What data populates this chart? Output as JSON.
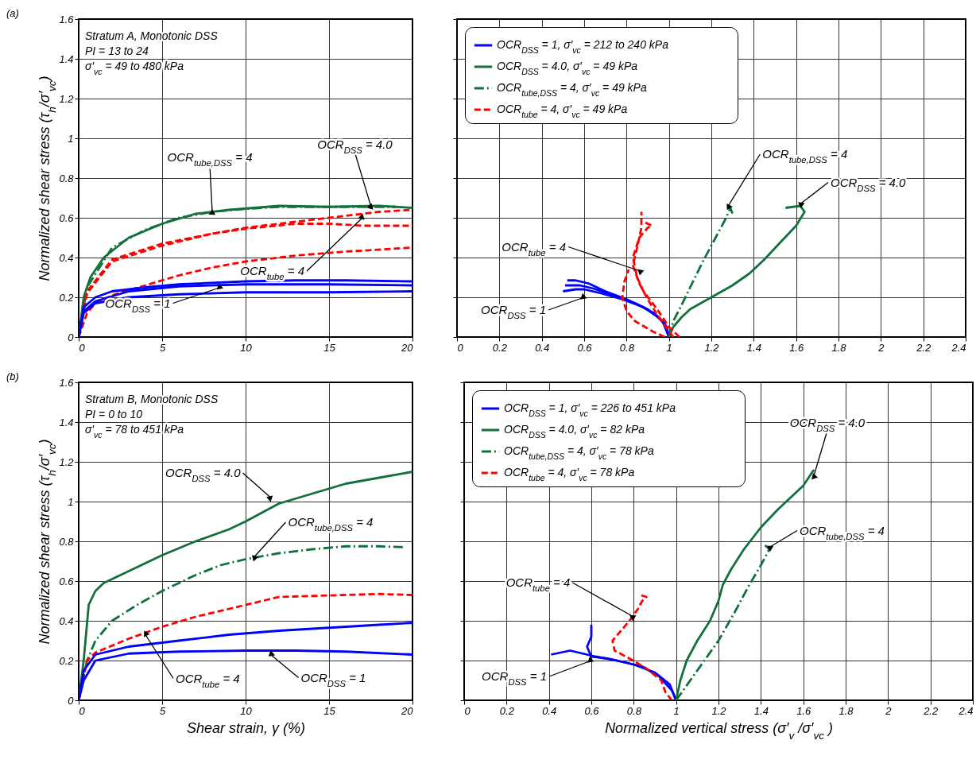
{
  "chart_data": [
    {
      "type": "line",
      "title": "(a)",
      "ylabel": "Normalized shear stress (τ$_{h}$/σ′$_{vc}$)",
      "xlim": [
        0,
        20
      ],
      "ylim": [
        0,
        1.6
      ],
      "xticks": [
        0,
        5,
        10,
        15,
        20
      ],
      "yticks": [
        0,
        0.2,
        0.4,
        0.6,
        0.8,
        1,
        1.2,
        1.4,
        1.6
      ],
      "grid": true,
      "legend": false,
      "series": [
        {
          "color": "#12703c",
          "line_style": "solid",
          "x": [
            0,
            0.3,
            0.7,
            1.5,
            3,
            5,
            7,
            9,
            12,
            15,
            18,
            20
          ],
          "values": [
            0,
            0.2,
            0.3,
            0.4,
            0.5,
            0.57,
            0.62,
            0.64,
            0.66,
            0.655,
            0.66,
            0.65
          ]
        },
        {
          "color": "#12703c",
          "line_style": "dashdot",
          "x": [
            0,
            0.5,
            2,
            4,
            6,
            8,
            10,
            12,
            15,
            19
          ],
          "values": [
            0,
            0.25,
            0.45,
            0.54,
            0.6,
            0.63,
            0.645,
            0.655,
            0.655,
            0.655
          ]
        },
        {
          "color": "#ff0000",
          "line_style": "dashed",
          "x": [
            0,
            0.5,
            2,
            5,
            8,
            10,
            12,
            15,
            18,
            20
          ],
          "values": [
            0,
            0.22,
            0.38,
            0.46,
            0.52,
            0.55,
            0.57,
            0.6,
            0.63,
            0.64
          ]
        },
        {
          "color": "#ff0000",
          "line_style": "dashed",
          "x": [
            0,
            0.5,
            2,
            5,
            8,
            10,
            13,
            15,
            17,
            20
          ],
          "values": [
            0,
            0.23,
            0.39,
            0.47,
            0.52,
            0.545,
            0.57,
            0.57,
            0.56,
            0.56
          ]
        },
        {
          "color": "#ff0000",
          "line_style": "dashed",
          "x": [
            0,
            0.5,
            1,
            2,
            4,
            6,
            8,
            10,
            13,
            16,
            20
          ],
          "values": [
            0,
            0.12,
            0.17,
            0.21,
            0.26,
            0.31,
            0.35,
            0.38,
            0.41,
            0.43,
            0.45
          ]
        },
        {
          "color": "#0000ff",
          "line_style": "solid",
          "x": [
            0,
            0.3,
            1,
            2,
            4,
            6,
            10,
            13,
            16,
            20
          ],
          "values": [
            0,
            0.15,
            0.2,
            0.23,
            0.25,
            0.265,
            0.28,
            0.285,
            0.285,
            0.28
          ]
        },
        {
          "color": "#0000ff",
          "line_style": "solid",
          "x": [
            0,
            0.3,
            1,
            3,
            6,
            10,
            15,
            20
          ],
          "values": [
            0,
            0.13,
            0.18,
            0.23,
            0.255,
            0.265,
            0.265,
            0.26
          ]
        },
        {
          "color": "#0000ff",
          "line_style": "solid",
          "x": [
            0,
            0.3,
            1,
            3,
            6,
            10,
            15,
            20
          ],
          "values": [
            0,
            0.12,
            0.17,
            0.2,
            0.215,
            0.225,
            0.225,
            0.23
          ]
        }
      ],
      "annotations": [
        "Stratum A, Monotonic DSS",
        "PI = 13 to 24",
        "σ′$_{vc}$ = 49 to 480 kPa",
        {
          "text": "OCR$_{tube,DSS}$ = 4",
          "x": 8,
          "y": 0.63
        },
        {
          "text": "OCR$_{DSS}$ = 4.0",
          "x": 17.5,
          "y": 0.66
        },
        {
          "text": "OCR$_{tube}$ = 4",
          "x": 17,
          "y": 0.6
        },
        {
          "text": "OCR$_{DSS}$ = 1",
          "x": 8.5,
          "y": 0.25
        }
      ]
    },
    {
      "type": "line",
      "xlim": [
        0,
        2.4
      ],
      "ylim": [
        0,
        1.6
      ],
      "xticks": [
        0,
        0.2,
        0.4,
        0.6,
        0.8,
        1,
        1.2,
        1.4,
        1.6,
        1.8,
        2,
        2.2,
        2.4
      ],
      "yticks": [
        0,
        0.2,
        0.4,
        0.6,
        0.8,
        1,
        1.2,
        1.4,
        1.6
      ],
      "grid": true,
      "legend": "top left",
      "tick_labels": "x",
      "series": [
        {
          "name": "OCR$_{DSS}$ = 1, σ′$_{vc}$ = 212 to 240 kPa",
          "color": "#0000ff",
          "line_style": "solid",
          "x": [
            1,
            0.99,
            0.95,
            0.88,
            0.78,
            0.68,
            0.6,
            0.56,
            0.5
          ],
          "values": [
            0,
            0.05,
            0.1,
            0.15,
            0.19,
            0.22,
            0.24,
            0.24,
            0.23
          ]
        },
        {
          "color": "#0000ff",
          "line_style": "solid",
          "x": [
            1,
            0.98,
            0.93,
            0.84,
            0.74,
            0.64,
            0.58,
            0.51
          ],
          "values": [
            0,
            0.07,
            0.12,
            0.17,
            0.21,
            0.245,
            0.26,
            0.26
          ]
        },
        {
          "color": "#0000ff",
          "line_style": "solid",
          "x": [
            1,
            0.97,
            0.9,
            0.8,
            0.7,
            0.62,
            0.56,
            0.52
          ],
          "values": [
            0,
            0.08,
            0.14,
            0.19,
            0.23,
            0.27,
            0.285,
            0.285
          ]
        },
        {
          "name": "OCR$_{DSS}$ = 4.0, σ′$_{vc}$ = 49 kPa",
          "color": "#12703c",
          "line_style": "solid",
          "x": [
            1,
            1.02,
            1.06,
            1.1,
            1.2,
            1.3,
            1.38,
            1.45,
            1.52,
            1.6,
            1.64,
            1.62,
            1.55
          ],
          "values": [
            0,
            0.05,
            0.1,
            0.14,
            0.2,
            0.26,
            0.32,
            0.39,
            0.47,
            0.56,
            0.63,
            0.66,
            0.65
          ]
        },
        {
          "name": "OCR$_{tube,DSS}$ = 4, σ′$_{vc}$ = 49 kPa",
          "color": "#12703c",
          "line_style": "dashdot",
          "x": [
            1,
            1.02,
            1.05,
            1.1,
            1.16,
            1.22,
            1.27,
            1.29,
            1.3
          ],
          "values": [
            0,
            0.08,
            0.14,
            0.25,
            0.38,
            0.5,
            0.6,
            0.65,
            0.62
          ]
        },
        {
          "name": "OCR$_{tube}$ = 4, σ′$_{vc}$ = 49 kPa",
          "color": "#ff0000",
          "line_style": "dashed",
          "x": [
            1.05,
            1,
            0.97,
            0.93,
            0.88,
            0.85,
            0.83,
            0.86,
            0.9,
            0.92,
            0.88
          ],
          "values": [
            0,
            0.05,
            0.1,
            0.16,
            0.23,
            0.3,
            0.4,
            0.5,
            0.55,
            0.56,
            0.58
          ]
        },
        {
          "color": "#ff0000",
          "line_style": "dashed",
          "x": [
            1.02,
            0.98,
            0.94,
            0.9,
            0.86,
            0.83,
            0.85,
            0.87,
            0.87
          ],
          "values": [
            0,
            0.06,
            0.12,
            0.19,
            0.27,
            0.36,
            0.45,
            0.55,
            0.63
          ]
        },
        {
          "color": "#ff0000",
          "line_style": "dashed",
          "x": [
            0.98,
            0.92,
            0.84,
            0.8,
            0.78,
            0.79,
            0.81
          ],
          "values": [
            0,
            0.03,
            0.08,
            0.13,
            0.2,
            0.28,
            0.34
          ]
        }
      ],
      "annotations": [
        {
          "text": "OCR$_{tube,DSS}$ = 4",
          "x": 1.28,
          "y": 0.66
        },
        {
          "text": "OCR$_{DSS}$ = 4.0",
          "x": 1.62,
          "y": 0.67
        },
        {
          "text": "OCR$_{tube}$ = 4",
          "x": 0.87,
          "y": 0.33
        },
        {
          "text": "OCR$_{DSS}$ = 1",
          "x": 0.6,
          "y": 0.2
        }
      ]
    },
    {
      "type": "line",
      "title": "(b)",
      "xlabel": "Shear strain, γ (%)",
      "ylabel": "Normalized shear stress (τ$_{h}$/σ′$_{vc}$)",
      "xlim": [
        0,
        20
      ],
      "ylim": [
        0,
        1.6
      ],
      "xticks": [
        0,
        5,
        10,
        15,
        20
      ],
      "yticks": [
        0,
        0.2,
        0.4,
        0.6,
        0.8,
        1,
        1.2,
        1.4,
        1.6
      ],
      "grid": true,
      "legend": false,
      "series": [
        {
          "color": "#12703c",
          "line_style": "solid",
          "x": [
            0,
            0.3,
            0.6,
            1,
            1.5,
            3,
            5,
            7,
            9,
            10,
            12,
            14,
            16,
            18,
            20
          ],
          "values": [
            0,
            0.2,
            0.48,
            0.55,
            0.59,
            0.65,
            0.73,
            0.8,
            0.86,
            0.9,
            0.99,
            1.04,
            1.09,
            1.12,
            1.15
          ]
        },
        {
          "color": "#12703c",
          "line_style": "dashdot",
          "x": [
            0,
            0.5,
            1,
            2,
            3.5,
            5,
            7,
            8.5,
            10,
            12,
            14,
            16,
            18,
            19.5
          ],
          "values": [
            0,
            0.2,
            0.3,
            0.4,
            0.48,
            0.55,
            0.63,
            0.68,
            0.71,
            0.74,
            0.76,
            0.775,
            0.775,
            0.77
          ]
        },
        {
          "color": "#ff0000",
          "line_style": "dashed",
          "x": [
            0,
            0.5,
            1,
            3,
            5,
            7,
            9,
            11,
            12,
            14,
            16,
            18,
            20
          ],
          "values": [
            0,
            0.2,
            0.24,
            0.31,
            0.37,
            0.42,
            0.46,
            0.5,
            0.52,
            0.525,
            0.53,
            0.535,
            0.53
          ]
        },
        {
          "color": "#0000ff",
          "line_style": "solid",
          "x": [
            0,
            0.3,
            1,
            3,
            6,
            9,
            12,
            15,
            18,
            20
          ],
          "values": [
            0,
            0.15,
            0.23,
            0.27,
            0.3,
            0.33,
            0.35,
            0.365,
            0.38,
            0.39
          ]
        },
        {
          "color": "#0000ff",
          "line_style": "solid",
          "x": [
            0,
            0.3,
            1,
            3,
            6,
            10,
            13,
            16,
            20
          ],
          "values": [
            0,
            0.1,
            0.2,
            0.235,
            0.245,
            0.25,
            0.25,
            0.245,
            0.23
          ]
        }
      ],
      "annotations": [
        "Stratum B, Monotonic DSS",
        "PI = 0 to 10",
        "σ′$_{vc}$ = 78 to 451 kPa",
        {
          "text": "OCR$_{DSS}$ = 4.0",
          "x": 11.5,
          "y": 1.02
        },
        {
          "text": "OCR$_{tube,DSS}$ = 4",
          "x": 10.5,
          "y": 0.72
        },
        {
          "text": "OCR$_{tube}$ = 4",
          "x": 4,
          "y": 0.33
        },
        {
          "text": "OCR$_{DSS}$ = 1",
          "x": 11.5,
          "y": 0.23
        }
      ]
    },
    {
      "type": "line",
      "xlabel": "Normalized vertical stress (σ′$_{v}$ /σ′$_{vc}$ )",
      "xlim": [
        0,
        2.4
      ],
      "ylim": [
        0,
        1.6
      ],
      "xticks": [
        0,
        0.2,
        0.4,
        0.6,
        0.8,
        1,
        1.2,
        1.4,
        1.6,
        1.8,
        2,
        2.2,
        2.4
      ],
      "yticks": [
        0,
        0.2,
        0.4,
        0.6,
        0.8,
        1,
        1.2,
        1.4,
        1.6
      ],
      "grid": true,
      "legend": "top left",
      "tick_labels": "x",
      "series": [
        {
          "name": "OCR$_{DSS}$ = 1, σ′$_{vc}$ = 226 to 451 kPa",
          "color": "#0000ff",
          "line_style": "solid",
          "x": [
            1,
            0.98,
            0.92,
            0.84,
            0.72,
            0.62,
            0.5,
            0.41
          ],
          "values": [
            0,
            0.05,
            0.12,
            0.17,
            0.2,
            0.22,
            0.25,
            0.23
          ]
        },
        {
          "color": "#0000ff",
          "line_style": "solid",
          "x": [
            1,
            0.97,
            0.9,
            0.8,
            0.68,
            0.6,
            0.58,
            0.6,
            0.6
          ],
          "values": [
            0,
            0.08,
            0.14,
            0.18,
            0.21,
            0.22,
            0.27,
            0.32,
            0.38
          ]
        },
        {
          "name": "OCR$_{DSS}$ = 4.0, σ′$_{vc}$ = 82 kPa",
          "color": "#12703c",
          "line_style": "solid",
          "x": [
            1,
            1.02,
            1.05,
            1.1,
            1.16,
            1.2,
            1.22,
            1.26,
            1.32,
            1.4,
            1.48,
            1.54,
            1.6,
            1.65
          ],
          "values": [
            0,
            0.1,
            0.2,
            0.3,
            0.4,
            0.5,
            0.58,
            0.66,
            0.76,
            0.87,
            0.96,
            1.02,
            1.08,
            1.16
          ]
        },
        {
          "name": "OCR$_{tube,DSS}$ = 4, σ′$_{vc}$ = 78 kPa",
          "color": "#12703c",
          "line_style": "dashdot",
          "x": [
            1,
            1.04,
            1.1,
            1.2,
            1.28,
            1.34,
            1.4,
            1.44,
            1.42
          ],
          "values": [
            0,
            0.06,
            0.15,
            0.3,
            0.45,
            0.57,
            0.68,
            0.76,
            0.78
          ]
        },
        {
          "name": "OCR$_{tube}$ = 4, σ′$_{vc}$ = 78 kPa",
          "color": "#ff0000",
          "line_style": "dashed",
          "x": [
            0.98,
            0.95,
            0.93,
            0.86,
            0.78,
            0.71,
            0.7,
            0.74,
            0.78,
            0.82,
            0.84,
            0.86,
            0.83
          ],
          "values": [
            0,
            0.04,
            0.1,
            0.16,
            0.21,
            0.25,
            0.3,
            0.35,
            0.4,
            0.46,
            0.5,
            0.52,
            0.53
          ]
        }
      ],
      "annotations": [
        {
          "text": "OCR$_{DSS}$ = 4.0",
          "x": 1.65,
          "y": 1.13
        },
        {
          "text": "OCR$_{tube,DSS}$ = 4",
          "x": 1.44,
          "y": 0.77
        },
        {
          "text": "OCR$_{tube}$ = 4",
          "x": 0.8,
          "y": 0.42
        },
        {
          "text": "OCR$_{DSS}$ = 1",
          "x": 0.6,
          "y": 0.2
        }
      ]
    }
  ]
}
